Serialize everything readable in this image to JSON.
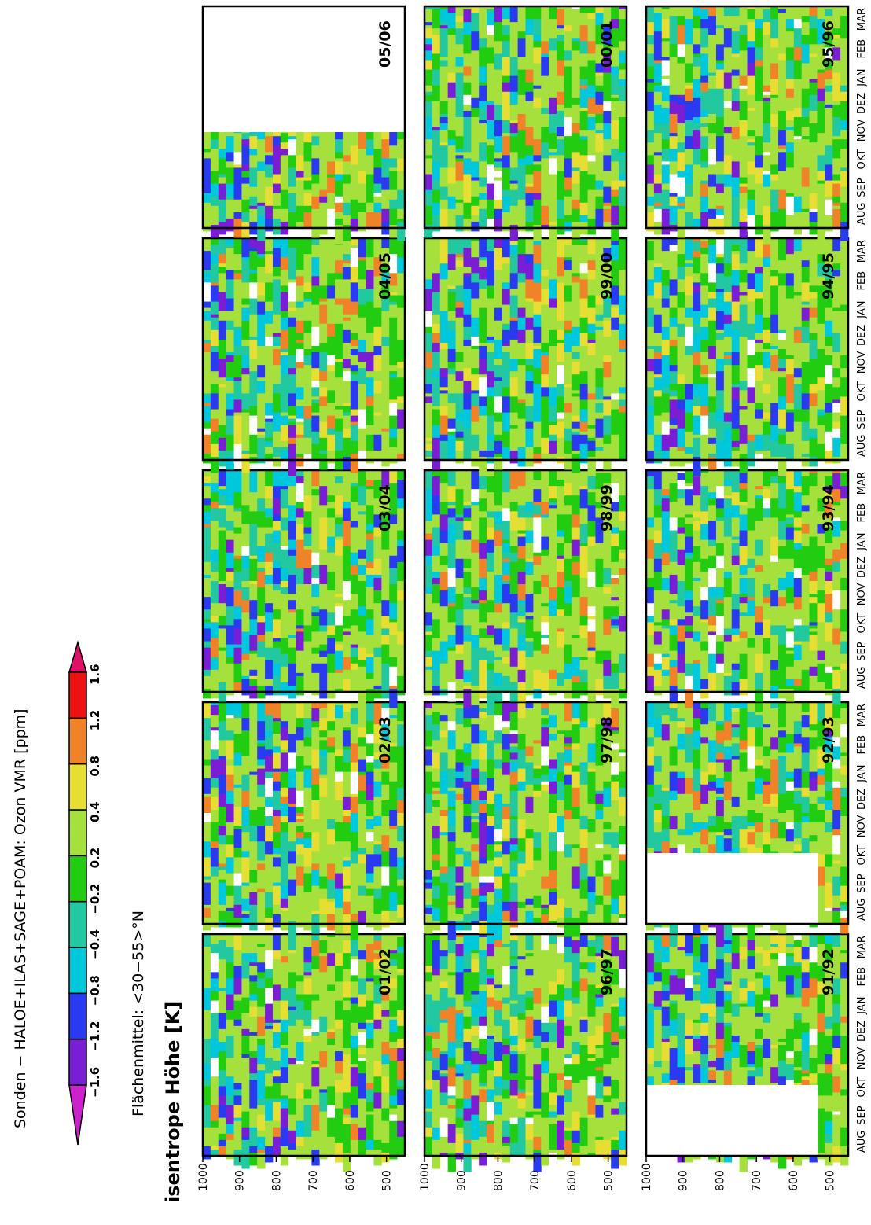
{
  "header": {
    "title": "Sonden  −  HALOE+ILAS+SAGE+POAM:  Ozon  VMR  [ppm]",
    "subtitle": "Flächenmittel:  <30−55>°N"
  },
  "colorbar": {
    "labels": [
      "−1.6",
      "−1.2",
      "−0.8",
      "−0.4",
      "−0.2",
      "0.2",
      "0.4",
      "0.8",
      "1.2",
      "1.6"
    ],
    "bins": [
      {
        "range": "< -1.6",
        "color": "#cc22cc"
      },
      {
        "range": "-1.6 .. -1.2",
        "color": "#7a1ed6"
      },
      {
        "range": "-1.2 .. -0.8",
        "color": "#2a3af0"
      },
      {
        "range": "-0.8 .. -0.4",
        "color": "#00c8dc"
      },
      {
        "range": "-0.4 .. -0.2",
        "color": "#22c8a0"
      },
      {
        "range": "-0.2 .. 0.2",
        "color": "#22cc11"
      },
      {
        "range": "0.2 .. 0.4",
        "color": "#a6e03c"
      },
      {
        "range": "0.4 .. 0.8",
        "color": "#e6de32"
      },
      {
        "range": "0.8 .. 1.2",
        "color": "#f08228"
      },
      {
        "range": "1.2 .. 1.6",
        "color": "#ee1111"
      },
      {
        "range": "> 1.6",
        "color": "#dd1166"
      }
    ]
  },
  "chart_data": {
    "type": "heatmap",
    "ylabel": "isentrope  Höhe  [K]",
    "yticks": [
      "1000",
      "900",
      "800",
      "700",
      "600",
      "500"
    ],
    "ylim": [
      1000,
      450
    ],
    "months": [
      "AUG",
      "SEP",
      "OKT",
      "NOV",
      "DEZ",
      "JAN",
      "FEB",
      "MAR"
    ],
    "panels": [
      {
        "season": "01/02",
        "row": 0,
        "col": 0
      },
      {
        "season": "02/03",
        "row": 0,
        "col": 1
      },
      {
        "season": "03/04",
        "row": 0,
        "col": 2
      },
      {
        "season": "04/05",
        "row": 0,
        "col": 3
      },
      {
        "season": "05/06",
        "row": 0,
        "col": 4
      },
      {
        "season": "96/97",
        "row": 1,
        "col": 0
      },
      {
        "season": "97/98",
        "row": 1,
        "col": 1
      },
      {
        "season": "98/99",
        "row": 1,
        "col": 2
      },
      {
        "season": "99/00",
        "row": 1,
        "col": 3
      },
      {
        "season": "00/01",
        "row": 1,
        "col": 4
      },
      {
        "season": "91/92",
        "row": 2,
        "col": 0
      },
      {
        "season": "92/93",
        "row": 2,
        "col": 1
      },
      {
        "season": "93/94",
        "row": 2,
        "col": 2
      },
      {
        "season": "94/95",
        "row": 2,
        "col": 3
      },
      {
        "season": "95/96",
        "row": 2,
        "col": 4
      }
    ]
  }
}
